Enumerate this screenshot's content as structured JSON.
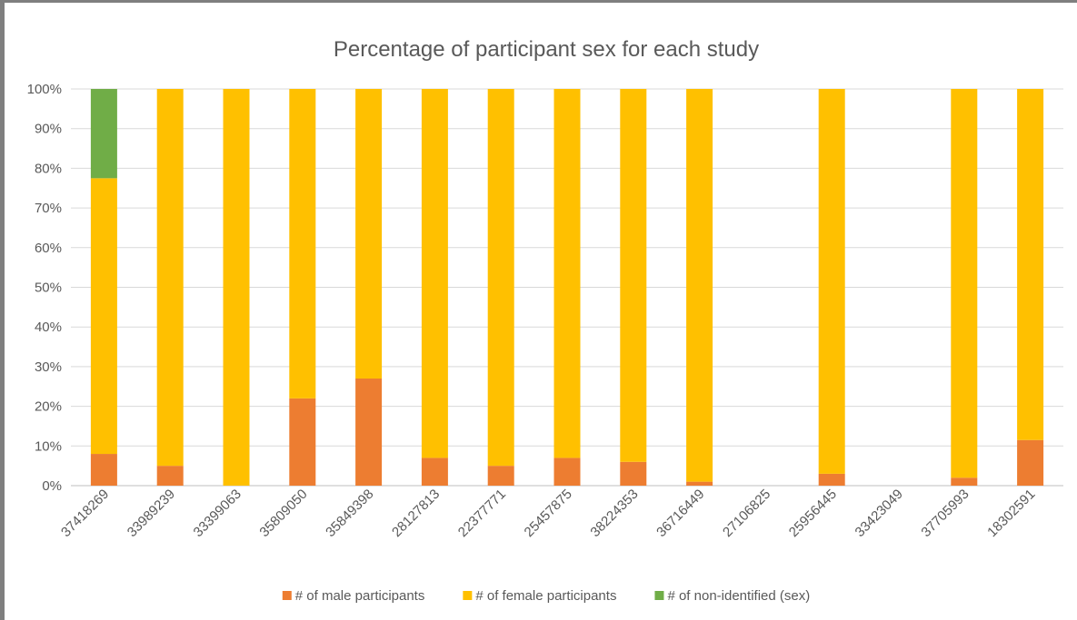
{
  "chart_data": {
    "type": "bar",
    "stacked": true,
    "normalized": true,
    "title": "Percentage of participant sex for each study",
    "xlabel": "",
    "ylabel": "",
    "ylim": [
      0,
      100
    ],
    "yticks": [
      "0%",
      "10%",
      "20%",
      "30%",
      "40%",
      "50%",
      "60%",
      "70%",
      "80%",
      "90%",
      "100%"
    ],
    "grid": true,
    "legend_position": "bottom",
    "categories": [
      "37418269",
      "33989239",
      "33399063",
      "35809050",
      "35849398",
      "28127813",
      "22377771",
      "25457875",
      "38224353",
      "36716449",
      "27106825",
      "25956445",
      "33423049",
      "37705993",
      "18302591"
    ],
    "series": [
      {
        "name": "# of male participants",
        "color": "#ED7D31",
        "values": [
          8,
          5,
          0,
          22,
          27,
          7,
          5,
          7,
          6,
          1,
          0,
          3,
          0,
          2,
          11.5
        ]
      },
      {
        "name": "# of female participants",
        "color": "#FFC000",
        "values": [
          69.5,
          95,
          100,
          78,
          73,
          93,
          95,
          93,
          94,
          99,
          0,
          97,
          0,
          98,
          88.5
        ]
      },
      {
        "name": "# of non-identified (sex)",
        "color": "#70AD47",
        "values": [
          22.5,
          0,
          0,
          0,
          0,
          0,
          0,
          0,
          0,
          0,
          0,
          0,
          0,
          0,
          0
        ]
      }
    ]
  }
}
